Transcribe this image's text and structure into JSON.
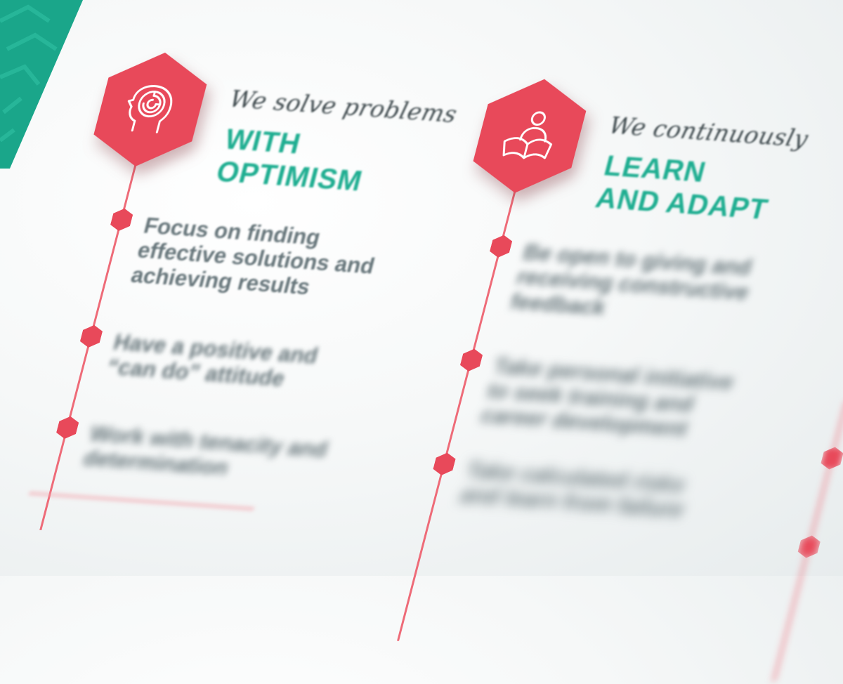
{
  "colors": {
    "accent_red": "#e8495a",
    "accent_teal": "#1fae91",
    "text_gray": "#67767b"
  },
  "values": [
    {
      "icon": "head-maze-icon",
      "script": "We solve problems",
      "title_line1": "WITH",
      "title_line2": "OPTIMISM",
      "items": [
        "Focus on finding effective solutions and achieving results",
        "Have a positive and “can do” attitude",
        "Work with tenacity and determination"
      ]
    },
    {
      "icon": "person-reading-book-icon",
      "script": "We continuously",
      "title_line1": "LEARN",
      "title_line2": "AND ADAPT",
      "items": [
        "Be open to giving and receiving constructive feedback",
        "Take personal initiative to seek training and career development",
        "Take calculated risks and learn from failure"
      ]
    }
  ]
}
